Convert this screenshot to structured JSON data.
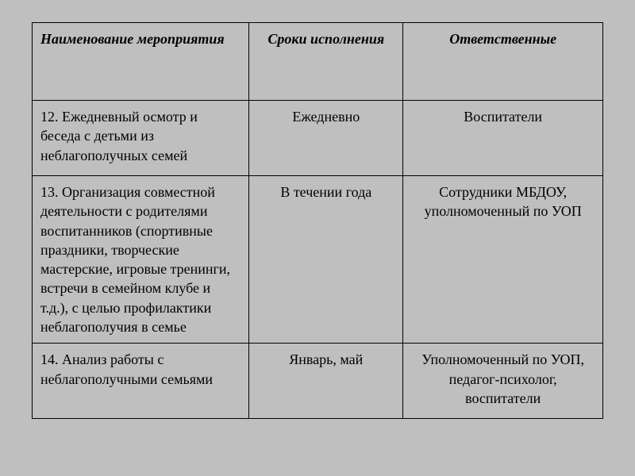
{
  "table": {
    "background_color": "#bfbfbf",
    "border_color": "#000000",
    "font_family": "Times New Roman",
    "columns": [
      {
        "label": "Наименование мероприятия",
        "width": "38%",
        "align": "left"
      },
      {
        "label": "Сроки исполнения",
        "width": "27%",
        "align": "center"
      },
      {
        "label": "Ответственные",
        "width": "35%",
        "align": "center"
      }
    ],
    "rows": [
      {
        "name": "12. Ежедневный осмотр и беседа с  детьми из неблагополучных семей",
        "srok": "Ежедневно",
        "otv": "Воспитатели"
      },
      {
        "name": "13. Организация совместной деятельности с родителями воспитанников (спортивные праздники, творческие мастерские, игровые тренинги, встречи в семейном клубе и т.д.), с целью профилактики неблагополучия в семье",
        "srok": "В течении года",
        "otv": "Сотрудники МБДОУ, уполномоченный по УОП"
      },
      {
        "name": "14. Анализ работы с неблагополучными семьями",
        "srok": "Январь, май",
        "otv": "Уполномоченный по УОП, педагог-психолог, воспитатели"
      }
    ]
  }
}
